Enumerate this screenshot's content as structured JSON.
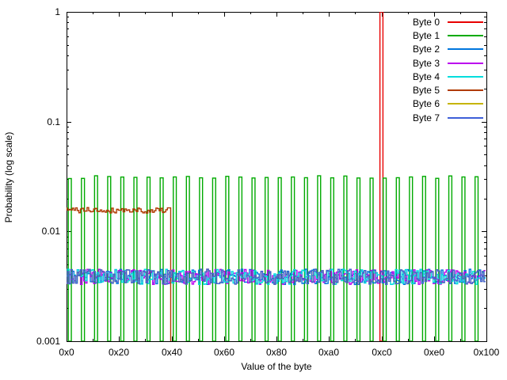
{
  "chart_data": {
    "type": "line",
    "title": "",
    "xlabel": "Value of the byte",
    "ylabel": "Probability (log scale)",
    "grid": false,
    "background_color": "#ffffff",
    "frame_color": "#000000",
    "legend_position": "top-right-inside",
    "x_axis": {
      "scale": "linear",
      "min": 0,
      "max": 256,
      "tick_labels": [
        "0x0",
        "0x20",
        "0x40",
        "0x60",
        "0x80",
        "0xa0",
        "0xc0",
        "0xe0",
        "0x100"
      ],
      "tick_values": [
        0,
        32,
        64,
        96,
        128,
        160,
        192,
        224,
        256
      ],
      "minor_tick_values": [
        16,
        48,
        80,
        112,
        144,
        176,
        208,
        240
      ]
    },
    "y_axis": {
      "scale": "log",
      "min": 0.001,
      "max": 1,
      "tick_labels": [
        "1",
        "0.1",
        "0.01",
        "0.001"
      ],
      "tick_values": [
        1,
        0.1,
        0.01,
        0.001
      ],
      "minor_ticks": "log-decade-2-to-9"
    },
    "series": [
      {
        "name": "Byte 0",
        "color": "#e80000",
        "style": "box",
        "distribution": "delta",
        "peak_value": 192,
        "peak_value_hex": "0xc0",
        "probability": 1.0
      },
      {
        "name": "Byte 1",
        "color": "#00aa00",
        "style": "boxes",
        "distribution": "comb",
        "first_value": 2,
        "period": 8,
        "count": 32,
        "probability": 0.03125,
        "noise": 0.03,
        "seed": 7
      },
      {
        "name": "Byte 2",
        "color": "#0076dd",
        "style": "histeps",
        "distribution": "uniform",
        "probability": 0.00390625,
        "noise": 0.16,
        "seed": 11
      },
      {
        "name": "Byte 3",
        "color": "#bb00ee",
        "style": "histeps",
        "distribution": "uniform",
        "probability": 0.00390625,
        "noise": 0.16,
        "seed": 23
      },
      {
        "name": "Byte 4",
        "color": "#00dddd",
        "style": "histeps",
        "distribution": "uniform",
        "probability": 0.00390625,
        "noise": 0.16,
        "seed": 37
      },
      {
        "name": "Byte 5",
        "color": "#b03a00",
        "style": "histeps",
        "distribution": "uniform-range",
        "range_start": 0,
        "range_end": 64,
        "range_hex": "0x00-0x40",
        "probability": 0.015625,
        "noise": 0.06,
        "seed": 41
      },
      {
        "name": "Byte 6",
        "color": "#c6b400",
        "style": "histeps",
        "distribution": "uniform",
        "probability": 0.00390625,
        "noise": 0.16,
        "seed": 53,
        "note": "curve fully occluded by Byte 7 in the plot"
      },
      {
        "name": "Byte 7",
        "color": "#3e5fd8",
        "style": "histeps",
        "distribution": "uniform",
        "probability": 0.00390625,
        "noise": 0.16,
        "seed": 53
      }
    ]
  }
}
